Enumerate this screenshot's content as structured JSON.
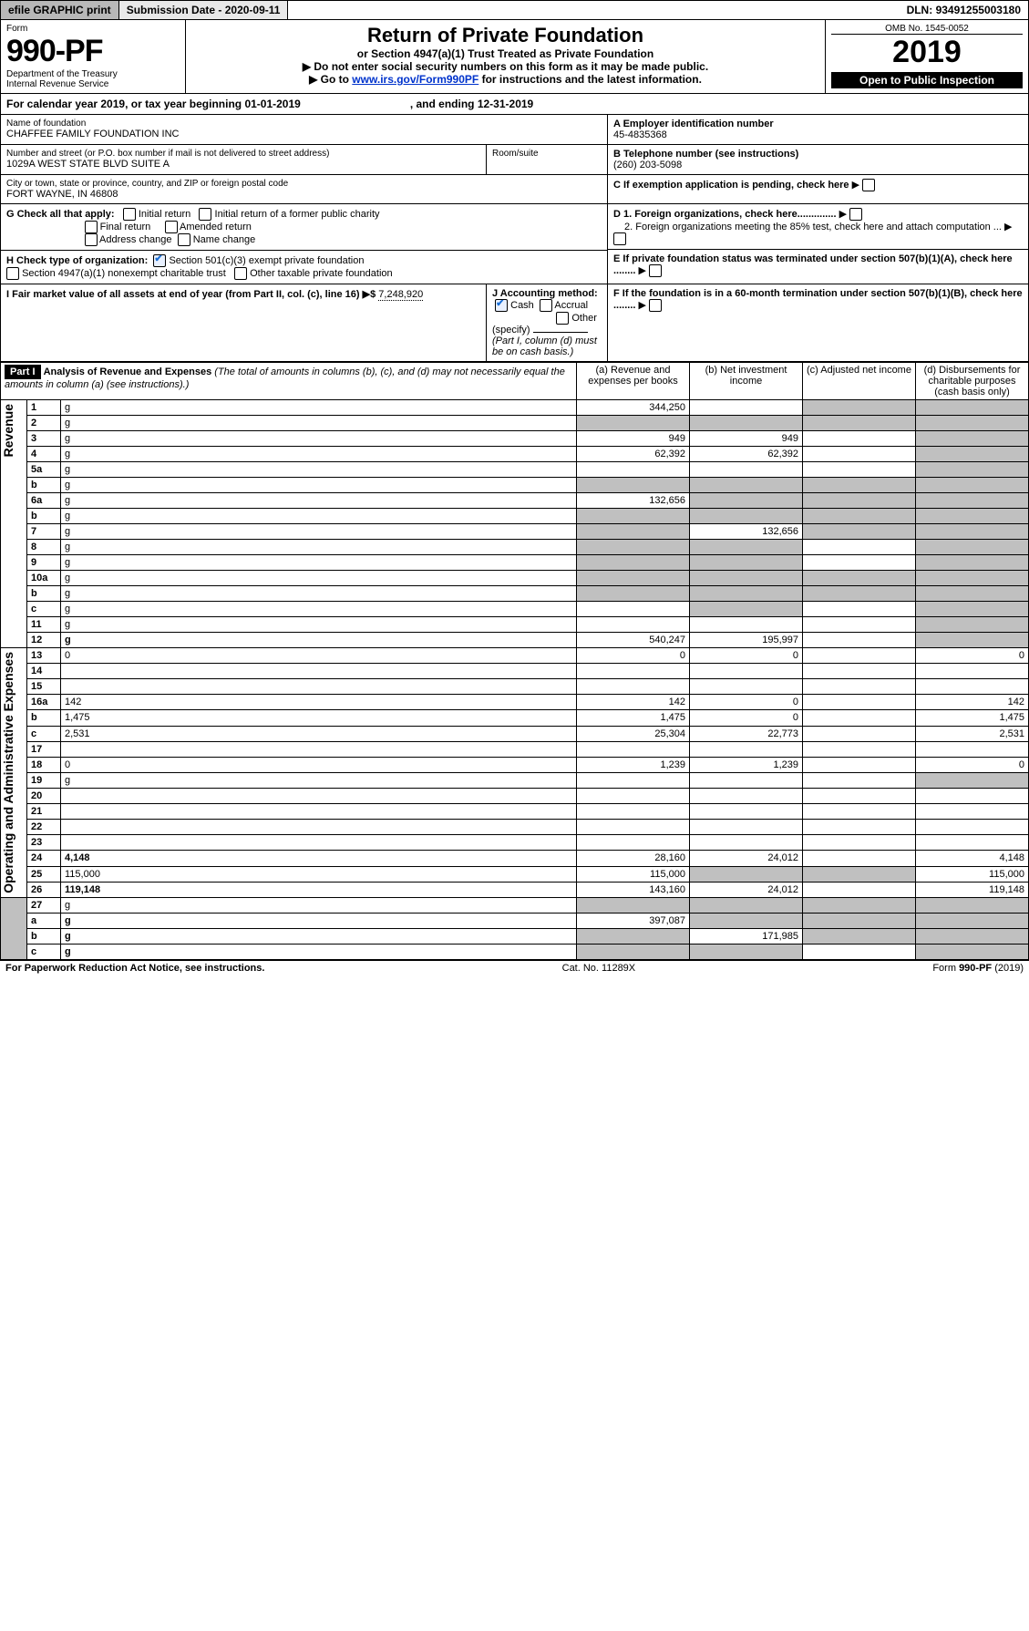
{
  "topbar": {
    "efile": "efile GRAPHIC print",
    "subdate_lbl": "Submission Date - ",
    "subdate": "2020-09-11",
    "dln_lbl": "DLN: ",
    "dln": "93491255003180"
  },
  "header": {
    "form_lbl": "Form",
    "form_no": "990-PF",
    "dept": "Department of the Treasury",
    "irs": "Internal Revenue Service",
    "title": "Return of Private Foundation",
    "subtitle": "or Section 4947(a)(1) Trust Treated as Private Foundation",
    "note1": "▶ Do not enter social security numbers on this form as it may be made public.",
    "note2": "▶ Go to ",
    "link": "www.irs.gov/Form990PF",
    "note2b": " for instructions and the latest information.",
    "omb": "OMB No. 1545-0052",
    "year": "2019",
    "inspection": "Open to Public Inspection"
  },
  "calrow": {
    "a": "For calendar year 2019, or tax year beginning 01-01-2019",
    "b": ", and ending 12-31-2019"
  },
  "meta": {
    "name_lbl": "Name of foundation",
    "name": "CHAFFEE FAMILY FOUNDATION INC",
    "addr_lbl": "Number and street (or P.O. box number if mail is not delivered to street address)",
    "room_lbl": "Room/suite",
    "addr": "1029A WEST STATE BLVD SUITE A",
    "city_lbl": "City or town, state or province, country, and ZIP or foreign postal code",
    "city": "FORT WAYNE, IN  46808",
    "A_lbl": "A Employer identification number",
    "A": "45-4835368",
    "B_lbl": "B Telephone number (see instructions)",
    "B": "(260) 203-5098",
    "C_lbl": "C If exemption application is pending, check here",
    "G_lbl": "G Check all that apply:",
    "G": {
      "initial": "Initial return",
      "initial_pub": "Initial return of a former public charity",
      "final": "Final return",
      "amended": "Amended return",
      "addr": "Address change",
      "name": "Name change"
    },
    "H_lbl": "H Check type of organization:",
    "H": {
      "s501": "Section 501(c)(3) exempt private foundation",
      "s4947": "Section 4947(a)(1) nonexempt charitable trust",
      "other": "Other taxable private foundation"
    },
    "D_lbl": "D 1. Foreign organizations, check here..............",
    "D2": "2. Foreign organizations meeting the 85% test, check here and attach computation ...",
    "E_lbl": "E If private foundation status was terminated under section 507(b)(1)(A), check here ........",
    "F_lbl": "F If the foundation is in a 60-month termination under section 507(b)(1)(B), check here ........",
    "I_lbl": "I Fair market value of all assets at end of year (from Part II, col. (c), line 16) ▶$",
    "I": "7,248,920",
    "J_lbl": "J Accounting method:",
    "J": {
      "cash": "Cash",
      "accrual": "Accrual",
      "other": "Other (specify)",
      "note": "(Part I, column (d) must be on cash basis.)"
    }
  },
  "part1": {
    "hdr": "Part I",
    "title": "Analysis of Revenue and Expenses",
    "note": "(The total of amounts in columns (b), (c), and (d) may not necessarily equal the amounts in column (a) (see instructions).)",
    "cols": {
      "a": "(a) Revenue and expenses per books",
      "b": "(b) Net investment income",
      "c": "(c) Adjusted net income",
      "d": "(d) Disbursements for charitable purposes (cash basis only)"
    }
  },
  "revenue": {
    "label": "Revenue",
    "rows": [
      {
        "n": "1",
        "d": "g",
        "a": "344,250",
        "b": "",
        "c": "g"
      },
      {
        "n": "2",
        "d": "g",
        "a": "g",
        "b": "g",
        "c": "g",
        "noabcd": true
      },
      {
        "n": "3",
        "d": "g",
        "a": "949",
        "b": "949",
        "c": ""
      },
      {
        "n": "4",
        "d": "g",
        "a": "62,392",
        "b": "62,392",
        "c": ""
      },
      {
        "n": "5a",
        "d": "g",
        "a": "",
        "b": "",
        "c": ""
      },
      {
        "n": "b",
        "d": "g",
        "a": "g",
        "b": "g",
        "c": "g",
        "noabcd": true
      },
      {
        "n": "6a",
        "d": "g",
        "a": "132,656",
        "b": "g",
        "c": "g"
      },
      {
        "n": "b",
        "d": "g",
        "a": "g",
        "b": "g",
        "c": "g",
        "noabcd": true
      },
      {
        "n": "7",
        "d": "g",
        "a": "g",
        "b": "132,656",
        "c": "g"
      },
      {
        "n": "8",
        "d": "g",
        "a": "g",
        "b": "g",
        "c": ""
      },
      {
        "n": "9",
        "d": "g",
        "a": "g",
        "b": "g",
        "c": ""
      },
      {
        "n": "10a",
        "d": "g",
        "a": "g",
        "b": "g",
        "c": "g",
        "noabcd": true
      },
      {
        "n": "b",
        "d": "g",
        "a": "g",
        "b": "g",
        "c": "g",
        "noabcd": true
      },
      {
        "n": "c",
        "d": "g",
        "a": "",
        "b": "g",
        "c": ""
      },
      {
        "n": "11",
        "d": "g",
        "a": "",
        "b": "",
        "c": ""
      },
      {
        "n": "12",
        "d": "g",
        "a": "540,247",
        "b": "195,997",
        "c": "",
        "bold": true
      }
    ]
  },
  "expenses": {
    "label": "Operating and Administrative Expenses",
    "rows": [
      {
        "n": "13",
        "d": "0",
        "a": "0",
        "b": "0",
        "c": ""
      },
      {
        "n": "14",
        "d": "",
        "a": "",
        "b": "",
        "c": ""
      },
      {
        "n": "15",
        "d": "",
        "a": "",
        "b": "",
        "c": ""
      },
      {
        "n": "16a",
        "d": "142",
        "a": "142",
        "b": "0",
        "c": ""
      },
      {
        "n": "b",
        "d": "1,475",
        "a": "1,475",
        "b": "0",
        "c": ""
      },
      {
        "n": "c",
        "d": "2,531",
        "a": "25,304",
        "b": "22,773",
        "c": ""
      },
      {
        "n": "17",
        "d": "",
        "a": "",
        "b": "",
        "c": ""
      },
      {
        "n": "18",
        "d": "0",
        "a": "1,239",
        "b": "1,239",
        "c": ""
      },
      {
        "n": "19",
        "d": "g",
        "a": "",
        "b": "",
        "c": ""
      },
      {
        "n": "20",
        "d": "",
        "a": "",
        "b": "",
        "c": ""
      },
      {
        "n": "21",
        "d": "",
        "a": "",
        "b": "",
        "c": ""
      },
      {
        "n": "22",
        "d": "",
        "a": "",
        "b": "",
        "c": ""
      },
      {
        "n": "23",
        "d": "",
        "a": "",
        "b": "",
        "c": ""
      },
      {
        "n": "24",
        "d": "4,148",
        "a": "28,160",
        "b": "24,012",
        "c": "",
        "bold": true
      },
      {
        "n": "25",
        "d": "115,000",
        "a": "115,000",
        "b": "g",
        "c": "g"
      },
      {
        "n": "26",
        "d": "119,148",
        "a": "143,160",
        "b": "24,012",
        "c": "",
        "bold": true
      }
    ]
  },
  "bottom": {
    "rows": [
      {
        "n": "27",
        "d": "g",
        "a": "g",
        "b": "g",
        "c": "g",
        "noabcd": true
      },
      {
        "n": "a",
        "d": "g",
        "a": "397,087",
        "b": "g",
        "c": "g",
        "bold": true
      },
      {
        "n": "b",
        "d": "g",
        "a": "g",
        "b": "171,985",
        "c": "g",
        "bold": true
      },
      {
        "n": "c",
        "d": "g",
        "a": "g",
        "b": "g",
        "c": "",
        "bold": true
      }
    ]
  },
  "footer": {
    "left": "For Paperwork Reduction Act Notice, see instructions.",
    "mid": "Cat. No. 11289X",
    "right": "Form 990-PF (2019)"
  }
}
